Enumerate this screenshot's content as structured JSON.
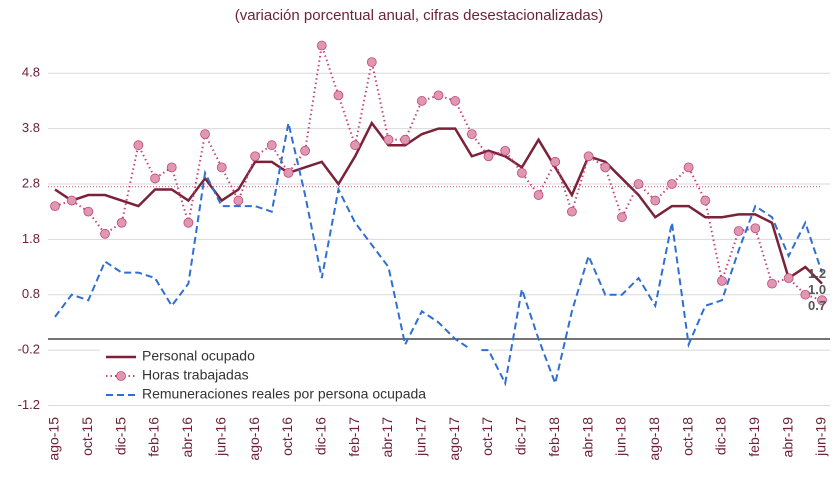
{
  "chart_data": {
    "type": "line",
    "title": "(variación porcentual anual, cifras desestacionalizadas)",
    "categories": [
      "ago-15",
      null,
      "oct-15",
      null,
      "dic-15",
      null,
      "feb-16",
      null,
      "abr-16",
      null,
      "jun-16",
      null,
      "ago-16",
      null,
      "oct-16",
      null,
      "dic-16",
      null,
      "feb-17",
      null,
      "abr-17",
      null,
      "jun-17",
      null,
      "ago-17",
      null,
      "oct-17",
      null,
      "dic-17",
      null,
      "feb-18",
      null,
      "abr-18",
      null,
      "jun-18",
      null,
      "ago-18",
      null,
      "oct-18",
      null,
      "dic-18",
      null,
      "feb-19",
      null,
      "abr-19",
      null,
      "jun-19"
    ],
    "series": [
      {
        "name": "Personal ocupado",
        "color": "#7b2138",
        "style": "solid",
        "last_label": "1.0",
        "values": [
          2.7,
          2.5,
          2.6,
          2.6,
          2.5,
          2.4,
          2.7,
          2.7,
          2.5,
          2.9,
          2.5,
          2.7,
          3.2,
          3.2,
          3.0,
          3.1,
          3.2,
          2.8,
          3.3,
          3.9,
          3.5,
          3.5,
          3.7,
          3.8,
          3.8,
          3.3,
          3.4,
          3.3,
          3.1,
          3.6,
          3.1,
          2.6,
          3.3,
          3.2,
          2.9,
          2.6,
          2.2,
          2.4,
          2.4,
          2.2,
          2.2,
          2.25,
          2.25,
          2.1,
          1.1,
          1.3,
          1.0
        ]
      },
      {
        "name": "Horas trabajadas",
        "color": "#c2487a",
        "marker_color": "#e098b2",
        "style": "dotted",
        "last_label": "0.7",
        "values": [
          2.4,
          2.5,
          2.3,
          1.9,
          2.1,
          3.5,
          2.9,
          3.1,
          2.1,
          3.7,
          3.1,
          2.5,
          3.3,
          3.5,
          3.0,
          3.4,
          5.3,
          4.4,
          3.5,
          5.0,
          3.6,
          3.6,
          4.3,
          4.4,
          4.3,
          3.7,
          3.3,
          3.4,
          3.0,
          2.6,
          3.2,
          2.3,
          3.3,
          3.1,
          2.2,
          2.8,
          2.5,
          2.8,
          3.1,
          2.5,
          1.05,
          1.95,
          2.0,
          1.0,
          1.1,
          0.8,
          0.7
        ]
      },
      {
        "name": "Remuneraciones reales por persona ocupada",
        "color": "#2f6fd1",
        "style": "dashed",
        "last_label": "1.2",
        "values": [
          0.4,
          0.8,
          0.7,
          1.4,
          1.2,
          1.2,
          1.1,
          0.6,
          1.0,
          3.0,
          2.4,
          2.4,
          2.4,
          2.3,
          3.9,
          2.6,
          1.1,
          2.7,
          2.1,
          1.7,
          1.3,
          -0.1,
          0.5,
          0.3,
          0.0,
          -0.2,
          -0.2,
          -0.8,
          0.9,
          0.0,
          -0.8,
          0.5,
          1.5,
          0.8,
          0.8,
          1.1,
          0.6,
          2.1,
          -0.1,
          0.6,
          0.7,
          1.6,
          2.4,
          2.2,
          1.5,
          2.1,
          1.2
        ]
      }
    ],
    "reference_line": {
      "value": 2.75,
      "color": "#d0507e"
    },
    "ylim": [
      -1.3,
      5.4
    ],
    "yticks": [
      -1.2,
      -0.2,
      0.8,
      1.8,
      2.8,
      3.8,
      4.8
    ],
    "grid": true,
    "legend": "lower left"
  }
}
